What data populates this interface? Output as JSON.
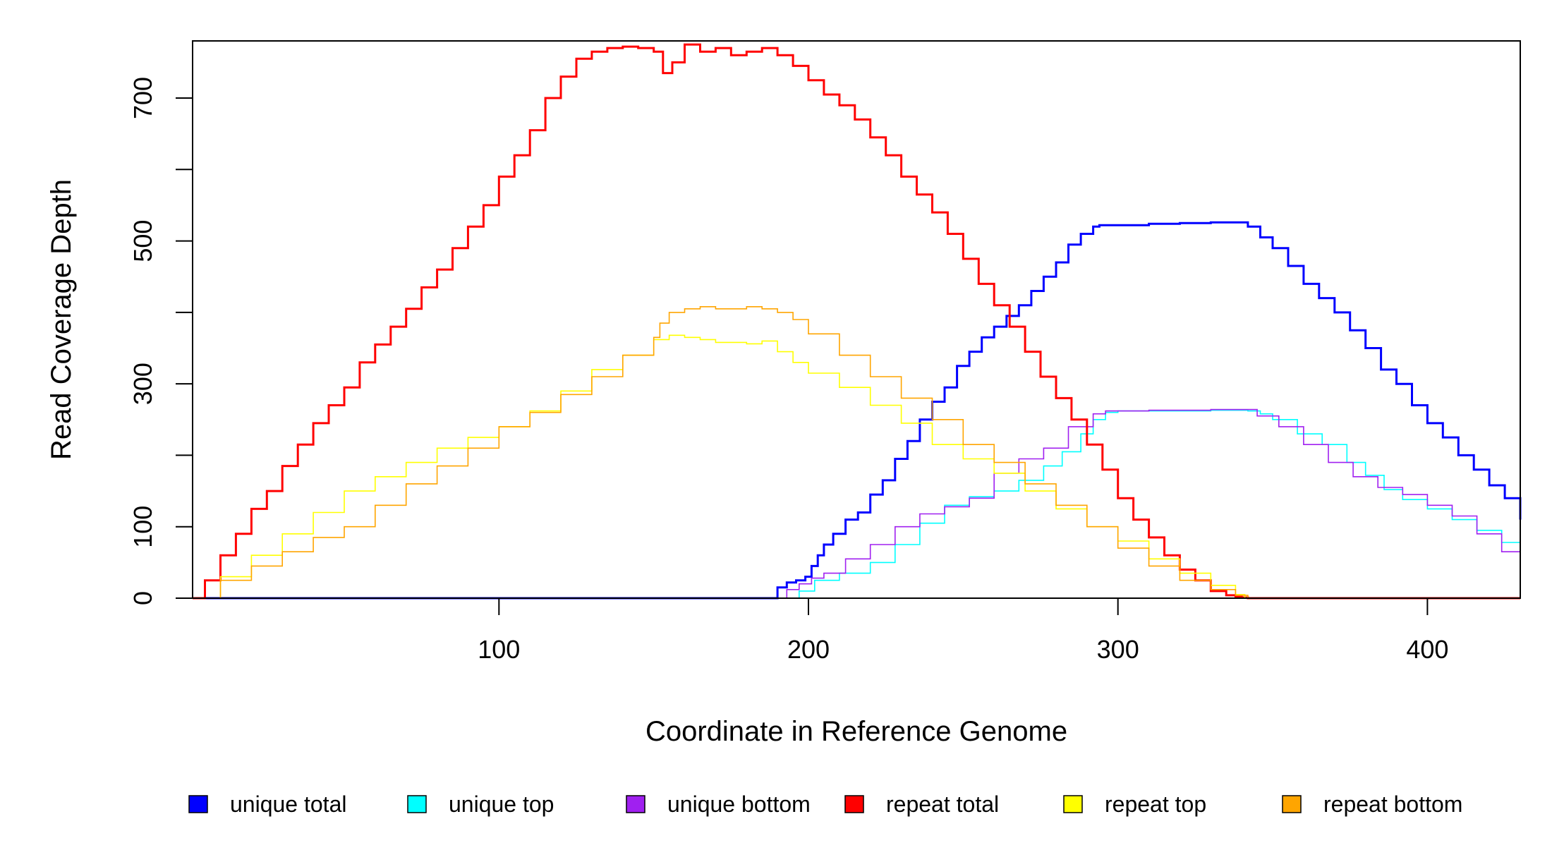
{
  "chart_data": {
    "type": "line",
    "title": "",
    "xlabel": "Coordinate in Reference Genome",
    "ylabel": "Read Coverage Depth",
    "xlim": [
      1,
      430
    ],
    "ylim": [
      0,
      780
    ],
    "x_ticks": [
      100,
      200,
      300,
      400
    ],
    "y_ticks": [
      0,
      100,
      200,
      300,
      400,
      500,
      600,
      700
    ],
    "x_tick_labels": [
      "100",
      "200",
      "300",
      "400"
    ],
    "y_tick_labels": [
      "0",
      "100",
      "",
      "300",
      "",
      "500",
      "",
      "700"
    ],
    "grid": false,
    "legend_position": "bottom",
    "series": [
      {
        "name": "unique total",
        "color": "#0000FF",
        "width": 3,
        "x": [
          1,
          188,
          190,
          193,
          196,
          199,
          201,
          203,
          205,
          208,
          212,
          216,
          220,
          224,
          228,
          232,
          236,
          240,
          244,
          248,
          252,
          256,
          260,
          264,
          268,
          272,
          276,
          280,
          284,
          288,
          292,
          294,
          300,
          310,
          320,
          330,
          338,
          342,
          346,
          350,
          355,
          360,
          365,
          370,
          375,
          380,
          385,
          390,
          395,
          400,
          405,
          410,
          415,
          420,
          425,
          430
        ],
        "y": [
          0,
          0,
          15,
          22,
          25,
          30,
          45,
          60,
          75,
          90,
          110,
          120,
          145,
          165,
          195,
          220,
          250,
          275,
          295,
          325,
          345,
          365,
          380,
          395,
          410,
          430,
          450,
          470,
          495,
          510,
          520,
          522,
          522,
          524,
          525,
          526,
          526,
          520,
          505,
          490,
          465,
          440,
          420,
          400,
          375,
          350,
          320,
          300,
          270,
          245,
          225,
          200,
          180,
          158,
          140,
          110
        ]
      },
      {
        "name": "unique top",
        "color": "#00FFFF",
        "width": 1.6,
        "x": [
          1,
          190,
          197,
          202,
          210,
          220,
          228,
          236,
          244,
          252,
          260,
          268,
          276,
          282,
          288,
          292,
          296,
          300,
          310,
          320,
          330,
          342,
          346,
          350,
          358,
          366,
          374,
          380,
          386,
          392,
          400,
          408,
          416,
          424,
          430
        ],
        "y": [
          0,
          0,
          10,
          25,
          35,
          50,
          75,
          105,
          130,
          142,
          150,
          165,
          185,
          205,
          230,
          250,
          260,
          262,
          262,
          262,
          263,
          262,
          258,
          250,
          230,
          215,
          190,
          172,
          152,
          138,
          125,
          110,
          95,
          78,
          70
        ]
      },
      {
        "name": "unique bottom",
        "color": "#A020F0",
        "width": 1.6,
        "x": [
          1,
          189,
          193,
          197,
          201,
          205,
          212,
          220,
          228,
          236,
          244,
          252,
          260,
          268,
          276,
          284,
          292,
          296,
          300,
          310,
          320,
          330,
          340,
          345,
          352,
          360,
          368,
          376,
          384,
          392,
          400,
          408,
          416,
          424,
          430
        ],
        "y": [
          0,
          0,
          12,
          20,
          28,
          35,
          55,
          75,
          100,
          118,
          128,
          140,
          175,
          195,
          210,
          240,
          258,
          262,
          262,
          263,
          263,
          264,
          264,
          255,
          240,
          215,
          190,
          170,
          155,
          145,
          130,
          115,
          90,
          65,
          40
        ]
      },
      {
        "name": "repeat total",
        "color": "#FF0000",
        "width": 3,
        "x": [
          1,
          5,
          10,
          15,
          20,
          25,
          30,
          35,
          40,
          45,
          50,
          55,
          60,
          65,
          70,
          75,
          80,
          85,
          90,
          95,
          100,
          105,
          110,
          115,
          120,
          125,
          130,
          135,
          140,
          145,
          150,
          153,
          156,
          160,
          165,
          170,
          175,
          180,
          185,
          190,
          195,
          200,
          205,
          210,
          215,
          220,
          225,
          230,
          235,
          240,
          245,
          250,
          255,
          260,
          265,
          270,
          275,
          280,
          285,
          290,
          295,
          300,
          305,
          310,
          315,
          320,
          325,
          330,
          335,
          338,
          340,
          342,
          430
        ],
        "y": [
          0,
          25,
          60,
          90,
          125,
          150,
          185,
          215,
          245,
          270,
          295,
          330,
          355,
          380,
          405,
          435,
          460,
          490,
          520,
          550,
          590,
          620,
          655,
          700,
          730,
          755,
          765,
          770,
          772,
          770,
          765,
          735,
          750,
          775,
          765,
          770,
          760,
          765,
          770,
          760,
          745,
          725,
          705,
          690,
          670,
          645,
          620,
          590,
          565,
          540,
          510,
          475,
          440,
          410,
          380,
          345,
          310,
          280,
          250,
          215,
          180,
          140,
          110,
          85,
          60,
          40,
          25,
          10,
          4,
          2,
          1,
          0,
          0
        ]
      },
      {
        "name": "repeat top",
        "color": "#FFFF00",
        "width": 1.6,
        "x": [
          1,
          10,
          20,
          30,
          40,
          50,
          60,
          70,
          80,
          90,
          100,
          110,
          120,
          130,
          140,
          150,
          155,
          160,
          165,
          170,
          175,
          180,
          185,
          190,
          195,
          200,
          210,
          220,
          230,
          240,
          250,
          260,
          270,
          280,
          290,
          300,
          310,
          320,
          330,
          338,
          341,
          430
        ],
        "y": [
          0,
          30,
          60,
          90,
          120,
          150,
          170,
          190,
          210,
          225,
          240,
          262,
          290,
          320,
          340,
          362,
          368,
          365,
          362,
          358,
          358,
          356,
          360,
          345,
          330,
          315,
          295,
          270,
          245,
          215,
          195,
          175,
          150,
          125,
          100,
          80,
          55,
          35,
          18,
          5,
          0,
          0
        ]
      },
      {
        "name": "repeat bottom",
        "color": "#FFA500",
        "width": 1.6,
        "x": [
          1,
          10,
          20,
          30,
          40,
          50,
          60,
          70,
          80,
          90,
          100,
          110,
          120,
          130,
          140,
          150,
          152,
          155,
          160,
          165,
          170,
          175,
          180,
          185,
          190,
          195,
          200,
          210,
          220,
          230,
          240,
          250,
          260,
          270,
          280,
          290,
          300,
          310,
          320,
          330,
          338,
          342,
          430
        ],
        "y": [
          0,
          25,
          45,
          65,
          85,
          100,
          130,
          160,
          185,
          210,
          240,
          260,
          285,
          310,
          340,
          365,
          385,
          400,
          405,
          408,
          405,
          405,
          408,
          405,
          400,
          390,
          370,
          340,
          310,
          280,
          250,
          215,
          190,
          160,
          130,
          100,
          70,
          45,
          25,
          12,
          4,
          0,
          0
        ]
      }
    ]
  }
}
